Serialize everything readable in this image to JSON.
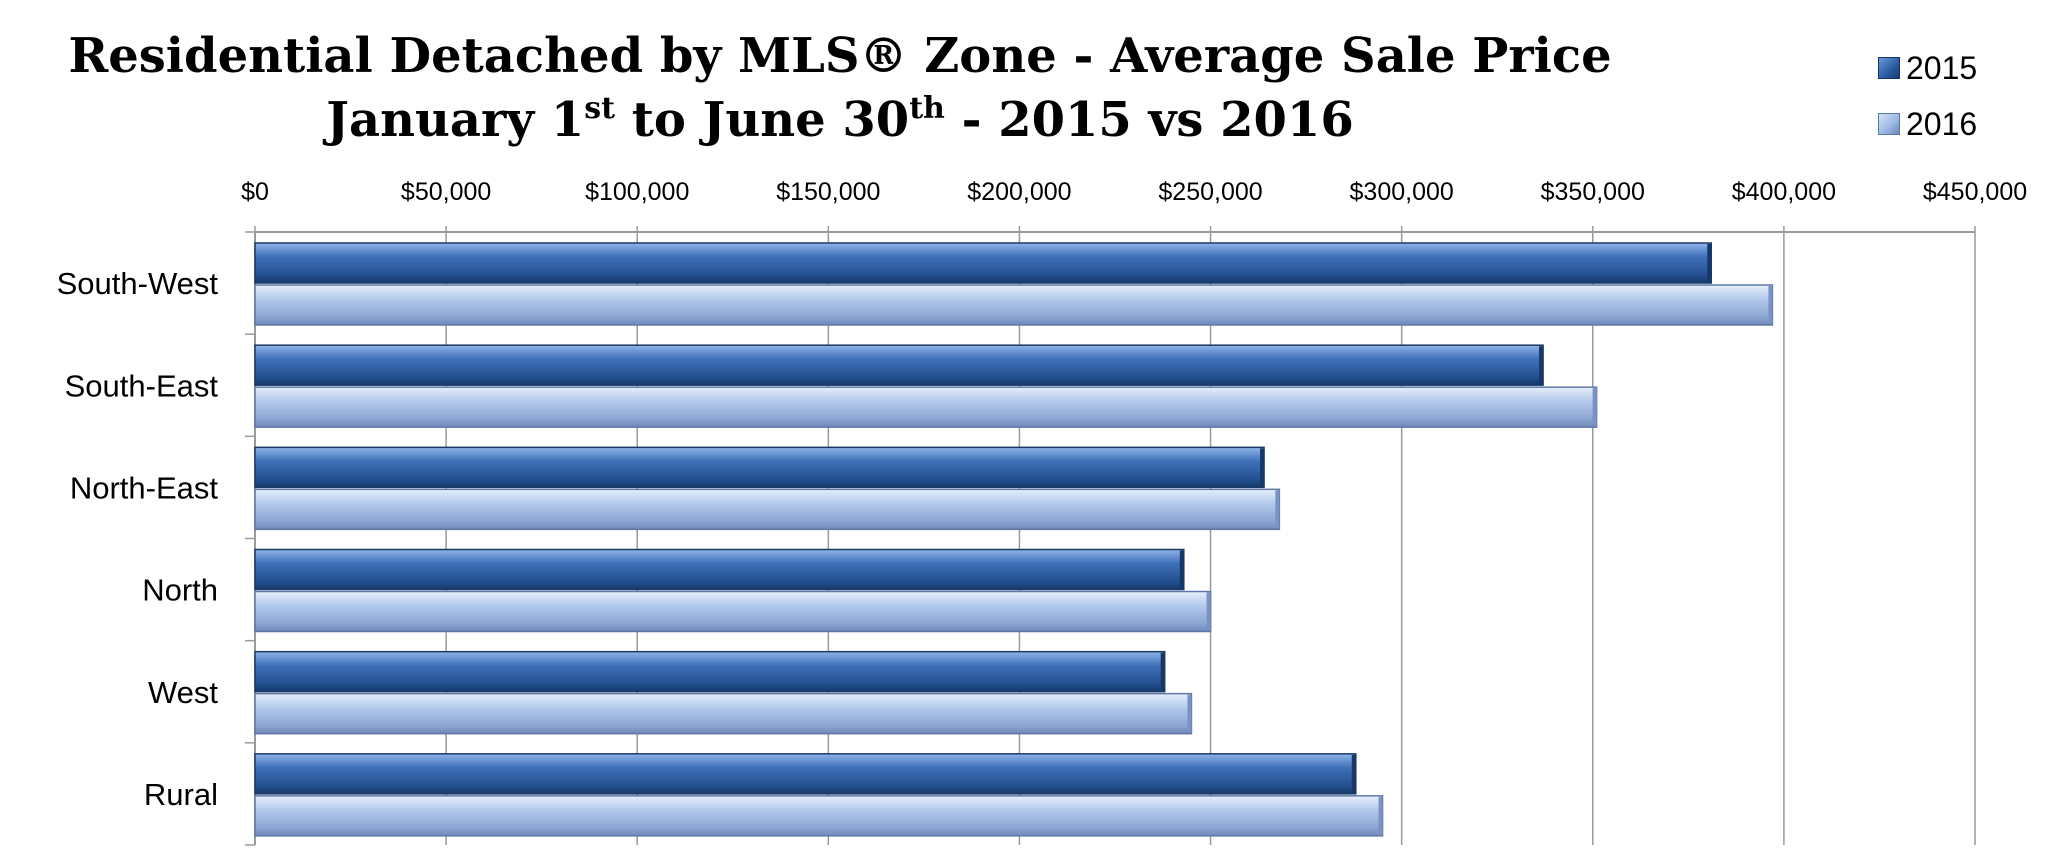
{
  "chart_title_line1": "Residential Detached by MLS® Zone - Average Sale Price",
  "chart_title_line2": {
    "part1": "January 1",
    "sup1": "st",
    "part2": " to June 30",
    "sup2": "th",
    "part3": " - 2015 vs 2016"
  },
  "colors": {
    "series_2015": "#2a5aa0",
    "series_2016": "#9ab6e2",
    "grid": "#9a9a9a"
  },
  "chart_data": {
    "type": "bar",
    "orientation": "horizontal",
    "categories": [
      "South-West",
      "South-East",
      "North-East",
      "North",
      "West",
      "Rural"
    ],
    "series": [
      {
        "name": "2015",
        "values": [
          381000,
          337000,
          264000,
          243000,
          238000,
          288000
        ]
      },
      {
        "name": "2016",
        "values": [
          397000,
          351000,
          268000,
          250000,
          245000,
          295000
        ]
      }
    ],
    "xlim": [
      0,
      450000
    ],
    "tick_values": [
      0,
      50000,
      100000,
      150000,
      200000,
      250000,
      300000,
      350000,
      400000,
      450000
    ],
    "tick_labels": [
      "$0",
      "$50,000",
      "$100,000",
      "$150,000",
      "$200,000",
      "$250,000",
      "$300,000",
      "$350,000",
      "$400,000",
      "$450,000"
    ],
    "x_axis_position": "top",
    "grid": true,
    "legend_position": "top-right"
  }
}
